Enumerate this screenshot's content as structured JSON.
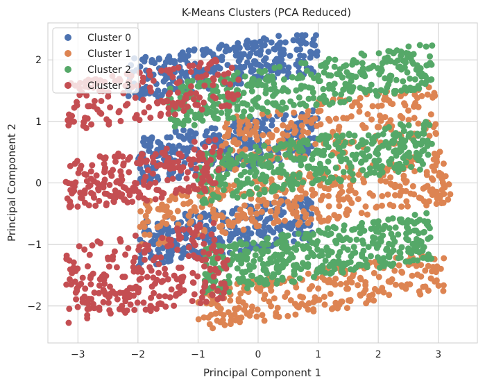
{
  "chart_data": {
    "type": "scatter",
    "title": "K-Means Clusters (PCA Reduced)",
    "xlabel": "Principal Component 1",
    "ylabel": "Principal Component 2",
    "xlim": [
      -3.5,
      3.65
    ],
    "ylim": [
      -2.6,
      2.6
    ],
    "xticks": [
      -3,
      -2,
      -1,
      0,
      1,
      2,
      3
    ],
    "yticks": [
      -2,
      -1,
      0,
      1,
      2
    ],
    "xtick_labels": [
      "−3",
      "−2",
      "−1",
      "0",
      "1",
      "2",
      "3"
    ],
    "ytick_labels": [
      "−2",
      "−1",
      "0",
      "1",
      "2"
    ],
    "grid": true,
    "legend_position": "top-left",
    "series": [
      {
        "name": "Cluster 0",
        "color": "#4c72b0",
        "bands": [
          {
            "x0": -2.2,
            "x1": 1.0,
            "y0": 1.55,
            "y1": 2.25,
            "n": 300
          },
          {
            "x0": -2.0,
            "x1": 1.0,
            "y0": 0.2,
            "y1": 1.0,
            "n": 320
          },
          {
            "x0": -2.0,
            "x1": 0.9,
            "y0": -1.15,
            "y1": -0.4,
            "n": 300
          }
        ]
      },
      {
        "name": "Cluster 1",
        "color": "#dd8452",
        "bands": [
          {
            "x0": -0.6,
            "x1": 3.0,
            "y0": 0.45,
            "y1": 1.35,
            "n": 220
          },
          {
            "x0": -2.0,
            "x1": 3.2,
            "y0": -0.7,
            "y1": 0.15,
            "n": 360
          },
          {
            "x0": -1.0,
            "x1": 3.1,
            "y0": -2.1,
            "y1": -1.4,
            "n": 260
          }
        ]
      },
      {
        "name": "Cluster 2",
        "color": "#55a868",
        "bands": [
          {
            "x0": -1.5,
            "x1": 2.9,
            "y0": 1.2,
            "y1": 1.95,
            "n": 380
          },
          {
            "x0": -1.0,
            "x1": 2.9,
            "y0": -0.05,
            "y1": 0.75,
            "n": 400
          },
          {
            "x0": -0.9,
            "x1": 2.9,
            "y0": -1.55,
            "y1": -0.75,
            "n": 420
          }
        ]
      },
      {
        "name": "Cluster 3",
        "color": "#c44e52",
        "bands": [
          {
            "x0": -3.2,
            "x1": -0.3,
            "y0": 1.05,
            "y1": 1.85,
            "n": 170
          },
          {
            "x0": -3.2,
            "x1": -0.6,
            "y0": -0.3,
            "y1": 0.55,
            "n": 220
          },
          {
            "x0": -3.2,
            "x1": -0.5,
            "y0": -2.1,
            "y1": -0.8,
            "n": 260
          }
        ]
      }
    ]
  }
}
